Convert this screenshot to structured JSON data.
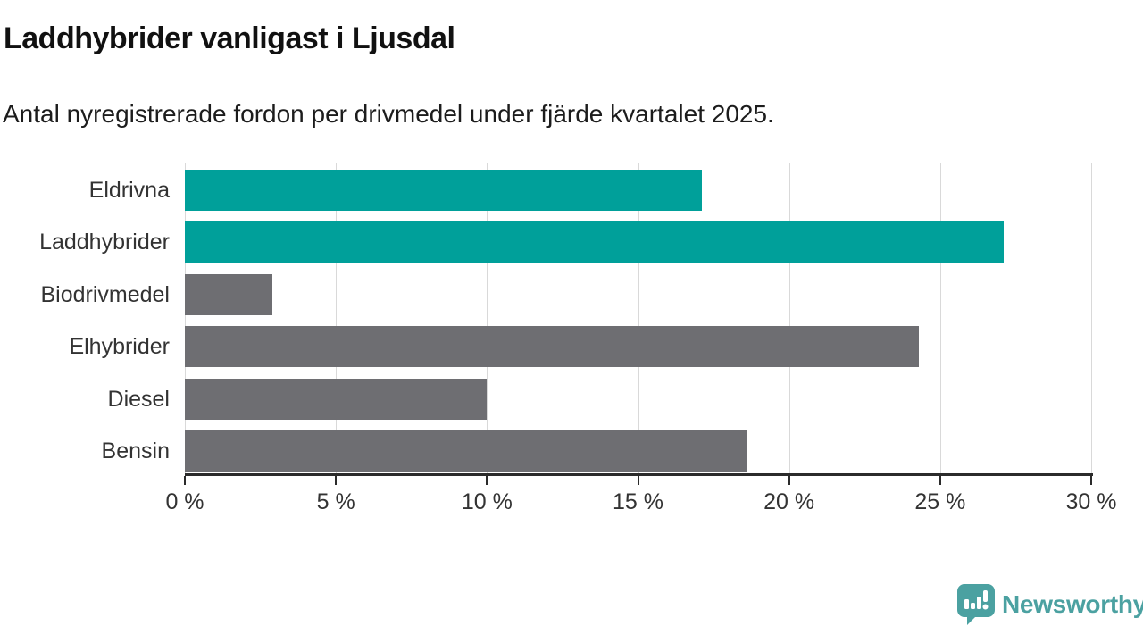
{
  "header": {
    "title": "Laddhybrider vanligast i Ljusdal",
    "subtitle": "Antal nyregistrerade fordon per drivmedel under fjärde kvartalet 2025."
  },
  "chart_data": {
    "type": "bar",
    "orientation": "horizontal",
    "title": "Laddhybrider vanligast i Ljusdal",
    "subtitle": "Antal nyregistrerade fordon per drivmedel under fjärde kvartalet 2025.",
    "categories": [
      "Eldrivna",
      "Laddhybrider",
      "Biodrivmedel",
      "Elhybrider",
      "Diesel",
      "Bensin"
    ],
    "values": [
      17.1,
      27.1,
      2.9,
      24.3,
      10.0,
      18.6
    ],
    "unit": "%",
    "bar_colors": [
      "#00a09a",
      "#00a09a",
      "#6e6e72",
      "#6e6e72",
      "#6e6e72",
      "#6e6e72"
    ],
    "highlight_color": "#00a09a",
    "default_color": "#6e6e72",
    "highlighted_categories": [
      "Eldrivna",
      "Laddhybrider"
    ],
    "xlim": [
      0,
      30
    ],
    "x_ticks": [
      0,
      5,
      10,
      15,
      20,
      25,
      30
    ],
    "x_tick_labels": [
      "0 %",
      "5 %",
      "10 %",
      "15 %",
      "20 %",
      "25 %",
      "30 %"
    ],
    "grid": true,
    "legend": false,
    "grid_color": "#d9d9d9",
    "axis_color": "#2b2b2b"
  },
  "footer": {
    "brand": "Newsworthy",
    "brand_color": "#4ba1a1"
  }
}
